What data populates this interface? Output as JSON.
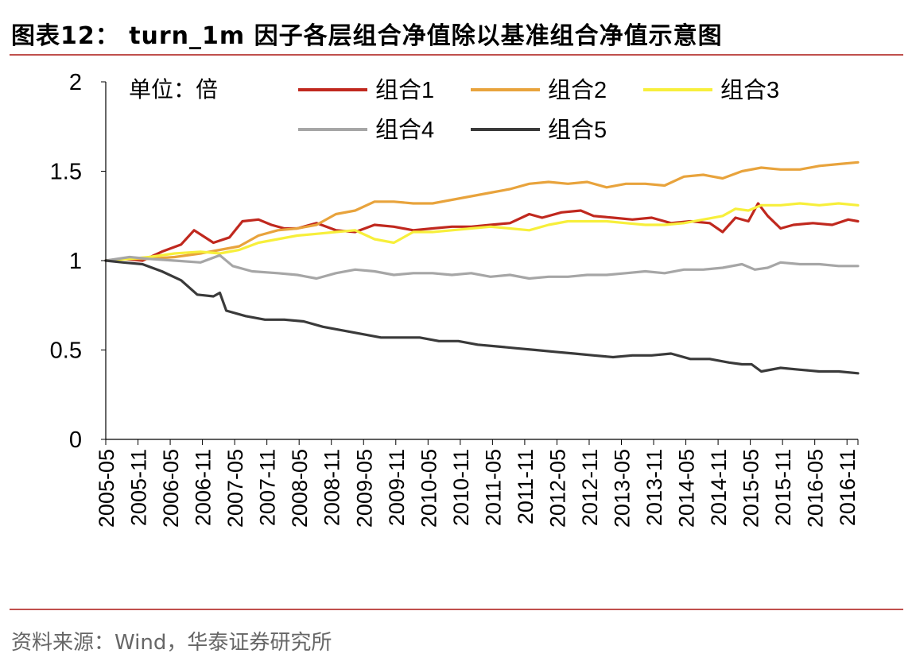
{
  "header": {
    "title": "图表12：  turn_1m 因子各层组合净值除以基准组合净值示意图"
  },
  "footer": {
    "source": "资料来源：Wind，华泰证券研究所"
  },
  "chart_data": {
    "type": "line",
    "title": "turn_1m 因子各层组合净值除以基准组合净值示意图",
    "unit_label": "单位：倍",
    "ylim": [
      0,
      2
    ],
    "yticks": [
      "0",
      "0.5",
      "1",
      "1.5",
      "2"
    ],
    "ytick_values": [
      0,
      0.5,
      1,
      1.5,
      2
    ],
    "x_start": 2005.33,
    "x_end": 2017.0,
    "xticks": [
      "2005-05",
      "2005-11",
      "2006-05",
      "2006-11",
      "2007-05",
      "2007-11",
      "2008-05",
      "2008-11",
      "2009-05",
      "2009-11",
      "2010-05",
      "2010-11",
      "2011-05",
      "2011-11",
      "2012-05",
      "2012-11",
      "2013-05",
      "2013-11",
      "2014-05",
      "2014-11",
      "2015-05",
      "2015-11",
      "2016-05",
      "2016-11"
    ],
    "legend_position": "top",
    "series": [
      {
        "name": "组合1",
        "color": "#c0281e",
        "x": [
          2005.33,
          2005.6,
          2005.9,
          2006.2,
          2006.5,
          2006.7,
          2007.0,
          2007.25,
          2007.45,
          2007.7,
          2007.9,
          2008.1,
          2008.3,
          2008.6,
          2008.9,
          2009.2,
          2009.5,
          2009.8,
          2010.1,
          2010.4,
          2010.7,
          2011.0,
          2011.3,
          2011.6,
          2011.9,
          2012.1,
          2012.4,
          2012.7,
          2012.9,
          2013.2,
          2013.5,
          2013.8,
          2014.1,
          2014.4,
          2014.7,
          2014.9,
          2015.1,
          2015.3,
          2015.45,
          2015.6,
          2015.8,
          2016.0,
          2016.3,
          2016.6,
          2016.85,
          2017.0
        ],
        "values": [
          1.0,
          1.01,
          1.0,
          1.05,
          1.09,
          1.17,
          1.1,
          1.13,
          1.22,
          1.23,
          1.2,
          1.18,
          1.18,
          1.21,
          1.17,
          1.16,
          1.2,
          1.19,
          1.17,
          1.18,
          1.19,
          1.19,
          1.2,
          1.21,
          1.26,
          1.24,
          1.27,
          1.28,
          1.25,
          1.24,
          1.23,
          1.24,
          1.21,
          1.22,
          1.21,
          1.16,
          1.24,
          1.22,
          1.32,
          1.25,
          1.18,
          1.2,
          1.21,
          1.2,
          1.23,
          1.22
        ]
      },
      {
        "name": "组合2",
        "color": "#e8a33c",
        "x": [
          2005.33,
          2005.6,
          2006.0,
          2006.4,
          2006.8,
          2007.1,
          2007.4,
          2007.7,
          2008.0,
          2008.3,
          2008.6,
          2008.9,
          2009.2,
          2009.5,
          2009.8,
          2010.1,
          2010.4,
          2010.7,
          2011.0,
          2011.3,
          2011.6,
          2011.9,
          2012.2,
          2012.5,
          2012.8,
          2013.1,
          2013.4,
          2013.7,
          2014.0,
          2014.3,
          2014.6,
          2014.9,
          2015.2,
          2015.5,
          2015.8,
          2016.1,
          2016.4,
          2016.7,
          2017.0
        ],
        "values": [
          1.0,
          1.01,
          1.01,
          1.02,
          1.04,
          1.06,
          1.08,
          1.14,
          1.17,
          1.18,
          1.2,
          1.26,
          1.28,
          1.33,
          1.33,
          1.32,
          1.32,
          1.34,
          1.36,
          1.38,
          1.4,
          1.43,
          1.44,
          1.43,
          1.44,
          1.41,
          1.43,
          1.43,
          1.42,
          1.47,
          1.48,
          1.46,
          1.5,
          1.52,
          1.51,
          1.51,
          1.53,
          1.54,
          1.55
        ]
      },
      {
        "name": "组合3",
        "color": "#f7ef3b",
        "x": [
          2005.33,
          2005.7,
          2006.0,
          2006.4,
          2006.8,
          2007.1,
          2007.4,
          2007.7,
          2008.0,
          2008.3,
          2008.6,
          2008.9,
          2009.2,
          2009.5,
          2009.8,
          2010.1,
          2010.4,
          2010.7,
          2011.0,
          2011.3,
          2011.6,
          2011.9,
          2012.2,
          2012.5,
          2012.8,
          2013.1,
          2013.4,
          2013.7,
          2014.0,
          2014.3,
          2014.6,
          2014.9,
          2015.1,
          2015.3,
          2015.5,
          2015.8,
          2016.1,
          2016.4,
          2016.7,
          2017.0
        ],
        "values": [
          1.0,
          1.01,
          1.02,
          1.04,
          1.05,
          1.04,
          1.06,
          1.1,
          1.12,
          1.14,
          1.15,
          1.16,
          1.17,
          1.12,
          1.1,
          1.16,
          1.16,
          1.17,
          1.18,
          1.19,
          1.18,
          1.17,
          1.2,
          1.22,
          1.22,
          1.22,
          1.21,
          1.2,
          1.2,
          1.21,
          1.23,
          1.25,
          1.29,
          1.28,
          1.31,
          1.31,
          1.32,
          1.31,
          1.32,
          1.31
        ]
      },
      {
        "name": "组合4",
        "color": "#a6a6a6",
        "x": [
          2005.33,
          2005.7,
          2006.0,
          2006.4,
          2006.8,
          2007.1,
          2007.3,
          2007.6,
          2008.0,
          2008.3,
          2008.6,
          2008.9,
          2009.2,
          2009.5,
          2009.8,
          2010.1,
          2010.4,
          2010.7,
          2011.0,
          2011.3,
          2011.6,
          2011.9,
          2012.2,
          2012.5,
          2012.8,
          2013.1,
          2013.4,
          2013.7,
          2014.0,
          2014.3,
          2014.6,
          2014.9,
          2015.2,
          2015.4,
          2015.6,
          2015.8,
          2016.1,
          2016.4,
          2016.7,
          2017.0
        ],
        "values": [
          1.0,
          1.02,
          1.01,
          1.0,
          0.99,
          1.03,
          0.97,
          0.94,
          0.93,
          0.92,
          0.9,
          0.93,
          0.95,
          0.94,
          0.92,
          0.93,
          0.93,
          0.92,
          0.93,
          0.91,
          0.92,
          0.9,
          0.91,
          0.91,
          0.92,
          0.92,
          0.93,
          0.94,
          0.93,
          0.95,
          0.95,
          0.96,
          0.98,
          0.95,
          0.96,
          0.99,
          0.98,
          0.98,
          0.97,
          0.97
        ]
      },
      {
        "name": "组合5",
        "color": "#3a3a3a",
        "x": [
          2005.33,
          2005.6,
          2005.9,
          2006.2,
          2006.5,
          2006.75,
          2007.0,
          2007.1,
          2007.2,
          2007.5,
          2007.8,
          2008.1,
          2008.4,
          2008.7,
          2009.0,
          2009.3,
          2009.6,
          2009.9,
          2010.2,
          2010.5,
          2010.8,
          2011.1,
          2011.4,
          2011.7,
          2012.0,
          2012.3,
          2012.6,
          2012.9,
          2013.2,
          2013.5,
          2013.8,
          2014.1,
          2014.4,
          2014.7,
          2015.0,
          2015.2,
          2015.35,
          2015.5,
          2015.8,
          2016.1,
          2016.4,
          2016.7,
          2017.0
        ],
        "values": [
          1.0,
          0.99,
          0.98,
          0.94,
          0.89,
          0.81,
          0.8,
          0.82,
          0.72,
          0.69,
          0.67,
          0.67,
          0.66,
          0.63,
          0.61,
          0.59,
          0.57,
          0.57,
          0.57,
          0.55,
          0.55,
          0.53,
          0.52,
          0.51,
          0.5,
          0.49,
          0.48,
          0.47,
          0.46,
          0.47,
          0.47,
          0.48,
          0.45,
          0.45,
          0.43,
          0.42,
          0.42,
          0.38,
          0.4,
          0.39,
          0.38,
          0.38,
          0.37
        ]
      }
    ]
  }
}
